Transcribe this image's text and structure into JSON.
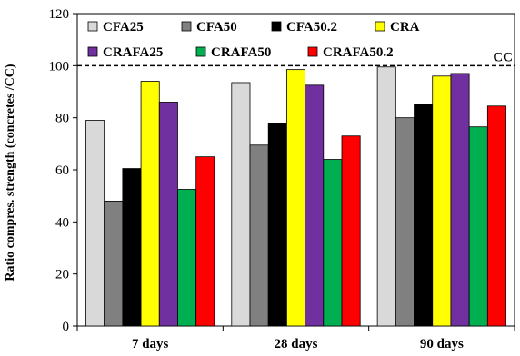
{
  "chart_data": {
    "type": "bar",
    "title": "",
    "xlabel": "",
    "ylabel": "Ratio compres. strength (concretes /CC)",
    "ylim": [
      0,
      120
    ],
    "yticks": [
      0,
      20,
      40,
      60,
      80,
      100,
      120
    ],
    "grid": false,
    "legend_position": "top-left",
    "categories": [
      "7 days",
      "28 days",
      "90 days"
    ],
    "series": [
      {
        "name": "CFA25",
        "color": "#d9d9d9",
        "values": [
          79,
          93.5,
          99.5
        ]
      },
      {
        "name": "CFA50",
        "color": "#808080",
        "values": [
          48,
          69.5,
          80
        ]
      },
      {
        "name": "CFA50.2",
        "color": "#000000",
        "values": [
          60.5,
          78,
          85
        ]
      },
      {
        "name": "CRA",
        "color": "#ffff00",
        "values": [
          94,
          98.5,
          96
        ]
      },
      {
        "name": "CRAFA25",
        "color": "#7030a0",
        "values": [
          86,
          92.5,
          97
        ]
      },
      {
        "name": "CRAFA50",
        "color": "#00b050",
        "values": [
          52.5,
          64,
          76.5
        ]
      },
      {
        "name": "CRAFA50.2",
        "color": "#ff0000",
        "values": [
          65,
          73,
          84.5
        ]
      }
    ],
    "reference_line": {
      "value": 100,
      "label": "CC",
      "style": "dashed"
    }
  }
}
